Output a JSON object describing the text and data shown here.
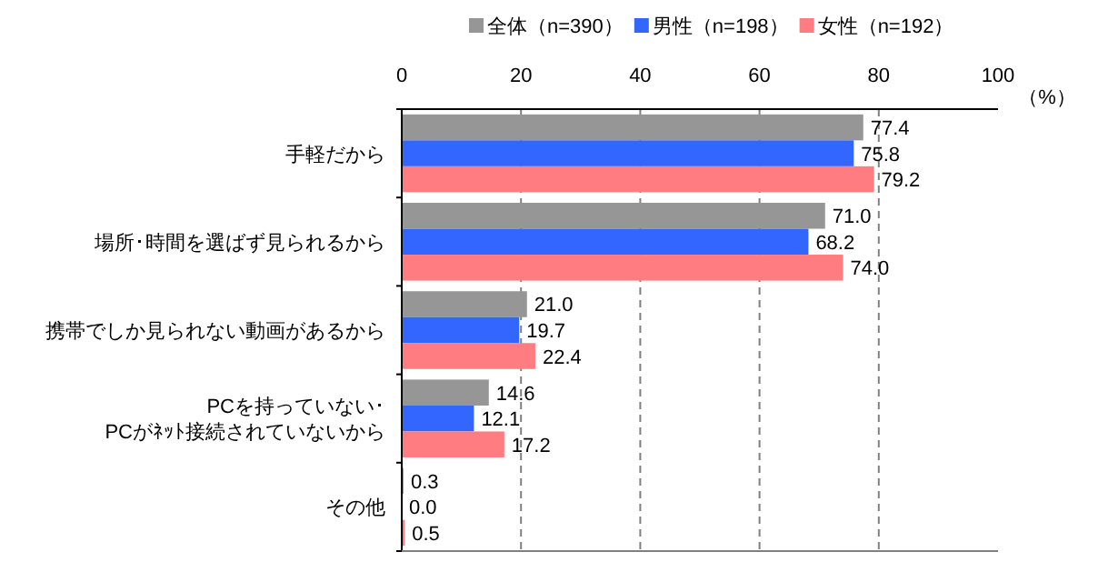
{
  "chart_data": {
    "type": "bar",
    "orientation": "horizontal",
    "xlabel": "（%）",
    "categories": [
      "手軽だから",
      "場所･時間を選ばず見られるから",
      "携帯でしか見られない動画があるから",
      "PCを持っていない･\nPCがﾈｯﾄ接続されていないから",
      "その他"
    ],
    "series": [
      {
        "name": "全体（n=390）",
        "color": "#969696",
        "values": [
          77.4,
          71.0,
          21.0,
          14.6,
          0.3
        ],
        "value_labels": [
          "77.4",
          "71.0",
          "21.0",
          "14.6",
          "0.3"
        ]
      },
      {
        "name": "男性（n=198）",
        "color": "#3366ff",
        "values": [
          75.8,
          68.2,
          19.7,
          12.1,
          0.0
        ],
        "value_labels": [
          "75.8",
          "68.2",
          "19.7",
          "12.1",
          "0.0"
        ]
      },
      {
        "name": "女性（n=192）",
        "color": "#ff7c80",
        "values": [
          79.2,
          74.0,
          22.4,
          17.2,
          0.5
        ],
        "value_labels": [
          "79.2",
          "74.0",
          "22.4",
          "17.2",
          "0.5"
        ]
      }
    ],
    "xlim": [
      0,
      100
    ],
    "xticks": [
      0,
      20,
      40,
      60,
      80,
      100
    ],
    "grid": "x",
    "legend": "top"
  }
}
